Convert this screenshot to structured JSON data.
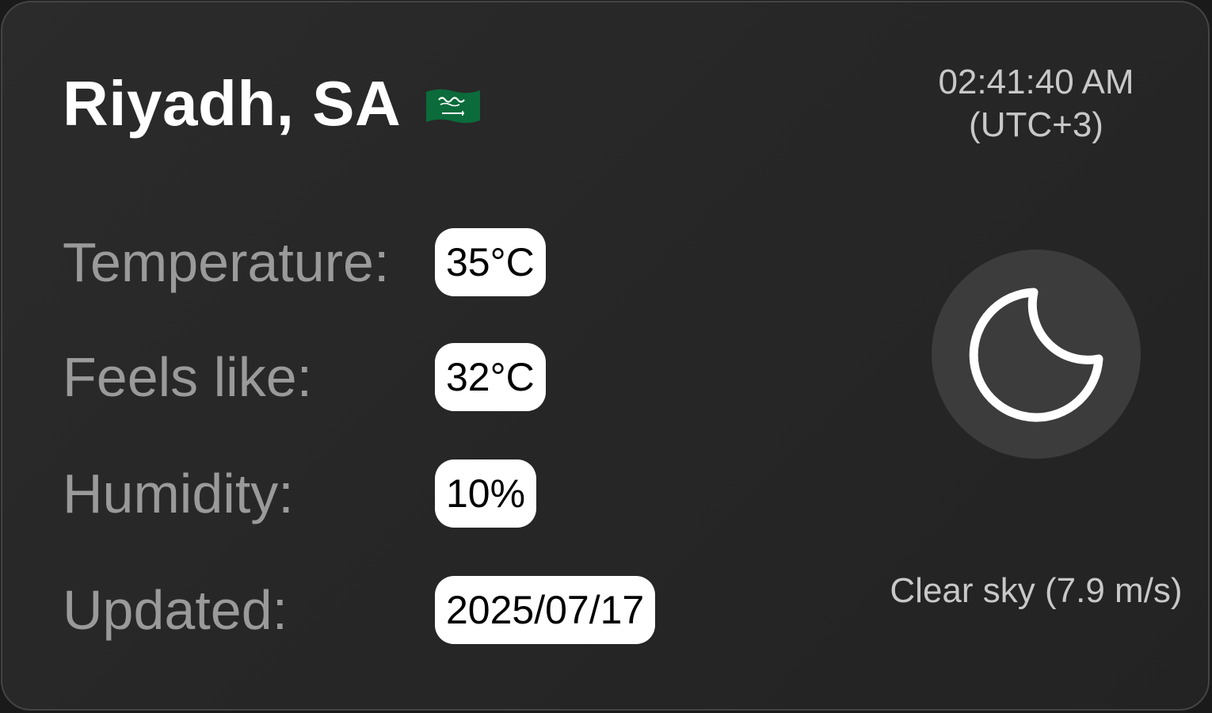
{
  "location": {
    "city": "Riyadh, SA",
    "flag_icon": "saudi-arabia-flag"
  },
  "clock": {
    "time": "02:41:40 AM",
    "timezone": "(UTC+3)"
  },
  "metrics": [
    {
      "label": "Temperature:",
      "value": "35°C"
    },
    {
      "label": "Feels like:",
      "value": "32°C"
    },
    {
      "label": "Humidity:",
      "value": "10%"
    },
    {
      "label": "Updated:",
      "value": "2025/07/17"
    }
  ],
  "weather": {
    "icon": "moon-icon",
    "condition": "Clear sky (7.9 m/s)"
  },
  "colors": {
    "card_background": "#262626",
    "label_text": "#9a9a9a",
    "value_pill": "#ffffff",
    "icon_circle": "#3c3c3c",
    "flag_green": "#0b6b3a"
  }
}
